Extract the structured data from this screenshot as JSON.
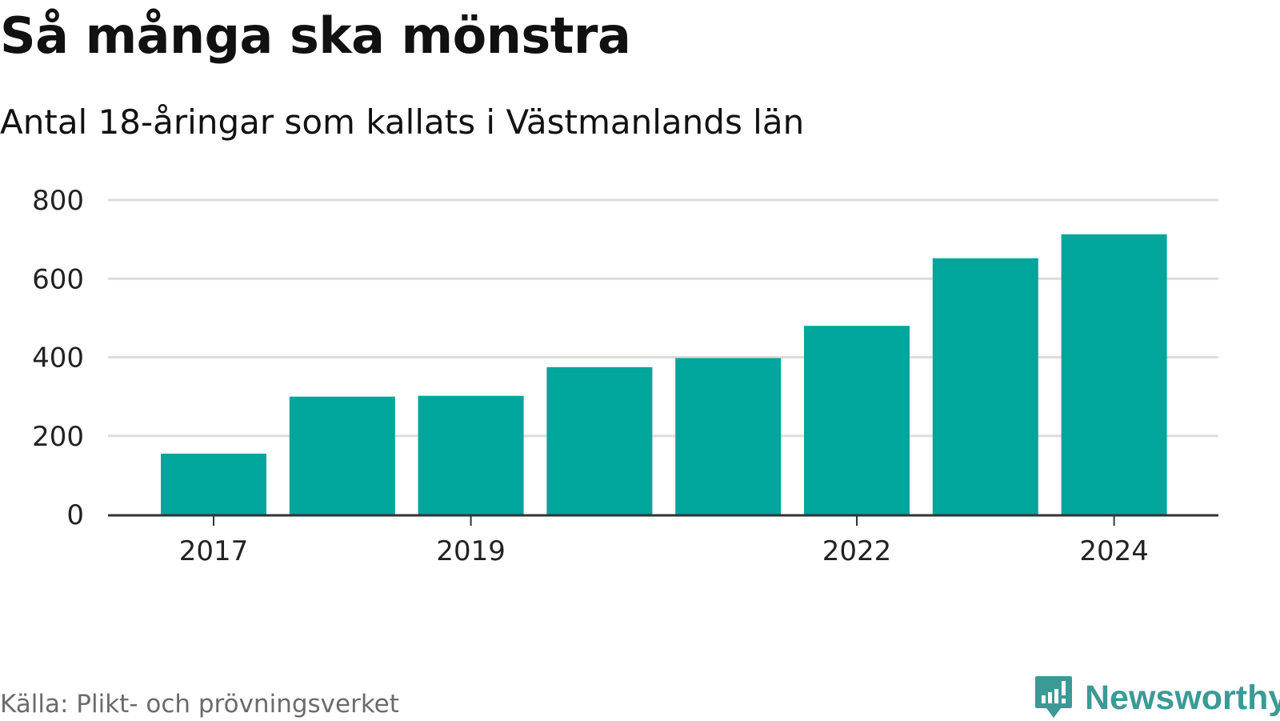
{
  "title": "Så många ska mönstra",
  "subtitle": "Antal 18-åringar som kallats i Västmanlands län",
  "source": "Källa: Plikt- och prövningsverket",
  "brand": {
    "name": "Newsworthy",
    "icon": "newsworthy-logo-icon"
  },
  "colors": {
    "bar": "#00a59b",
    "grid": "#dcdcdc",
    "axis": "#333333",
    "brand": "#3c9a96"
  },
  "chart_data": {
    "type": "bar",
    "title": "Så många ska mönstra",
    "subtitle": "Antal 18-åringar som kallats i Västmanlands län",
    "categories": [
      "2017",
      "2018",
      "2019",
      "2020",
      "2021",
      "2022",
      "2023",
      "2024"
    ],
    "values": [
      155,
      300,
      302,
      375,
      398,
      480,
      652,
      713
    ],
    "tick_labels_x": [
      "2017",
      "2019",
      "2022",
      "2024"
    ],
    "yticks": [
      0,
      200,
      400,
      600,
      800
    ],
    "ylim": [
      0,
      800
    ],
    "xlabel": "",
    "ylabel": "",
    "grid": true
  }
}
